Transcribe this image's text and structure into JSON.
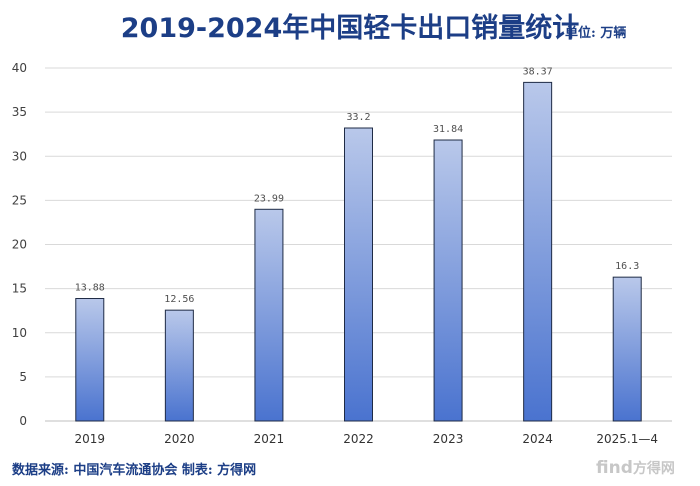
{
  "chart_data": {
    "type": "bar",
    "title": "2019-2024年中国轻卡出口销量统计",
    "unit_label": "单位: 万辆",
    "categories": [
      "2019",
      "2020",
      "2021",
      "2022",
      "2023",
      "2024",
      "2025.1—4"
    ],
    "values": [
      13.88,
      12.56,
      23.99,
      33.2,
      31.84,
      38.37,
      16.3
    ],
    "value_labels": [
      "13.88",
      "12.56",
      "23.99",
      "33.2",
      "31.84",
      "38.37",
      "16.3"
    ],
    "ylim": [
      0,
      40
    ],
    "yticks": [
      0,
      5,
      10,
      15,
      20,
      25,
      30,
      35,
      40
    ],
    "grid": true,
    "colors": {
      "bar_top": "#b9c8ea",
      "bar_bottom": "#4a73cf",
      "bar_stroke": "#1f2b45",
      "grid": "#d9d9d9",
      "title": "#1c3e86"
    }
  },
  "source": "数据来源: 中国汽车流通协会  制表: 方得网",
  "watermark": {
    "latin": "find",
    "cn": "方得网"
  }
}
